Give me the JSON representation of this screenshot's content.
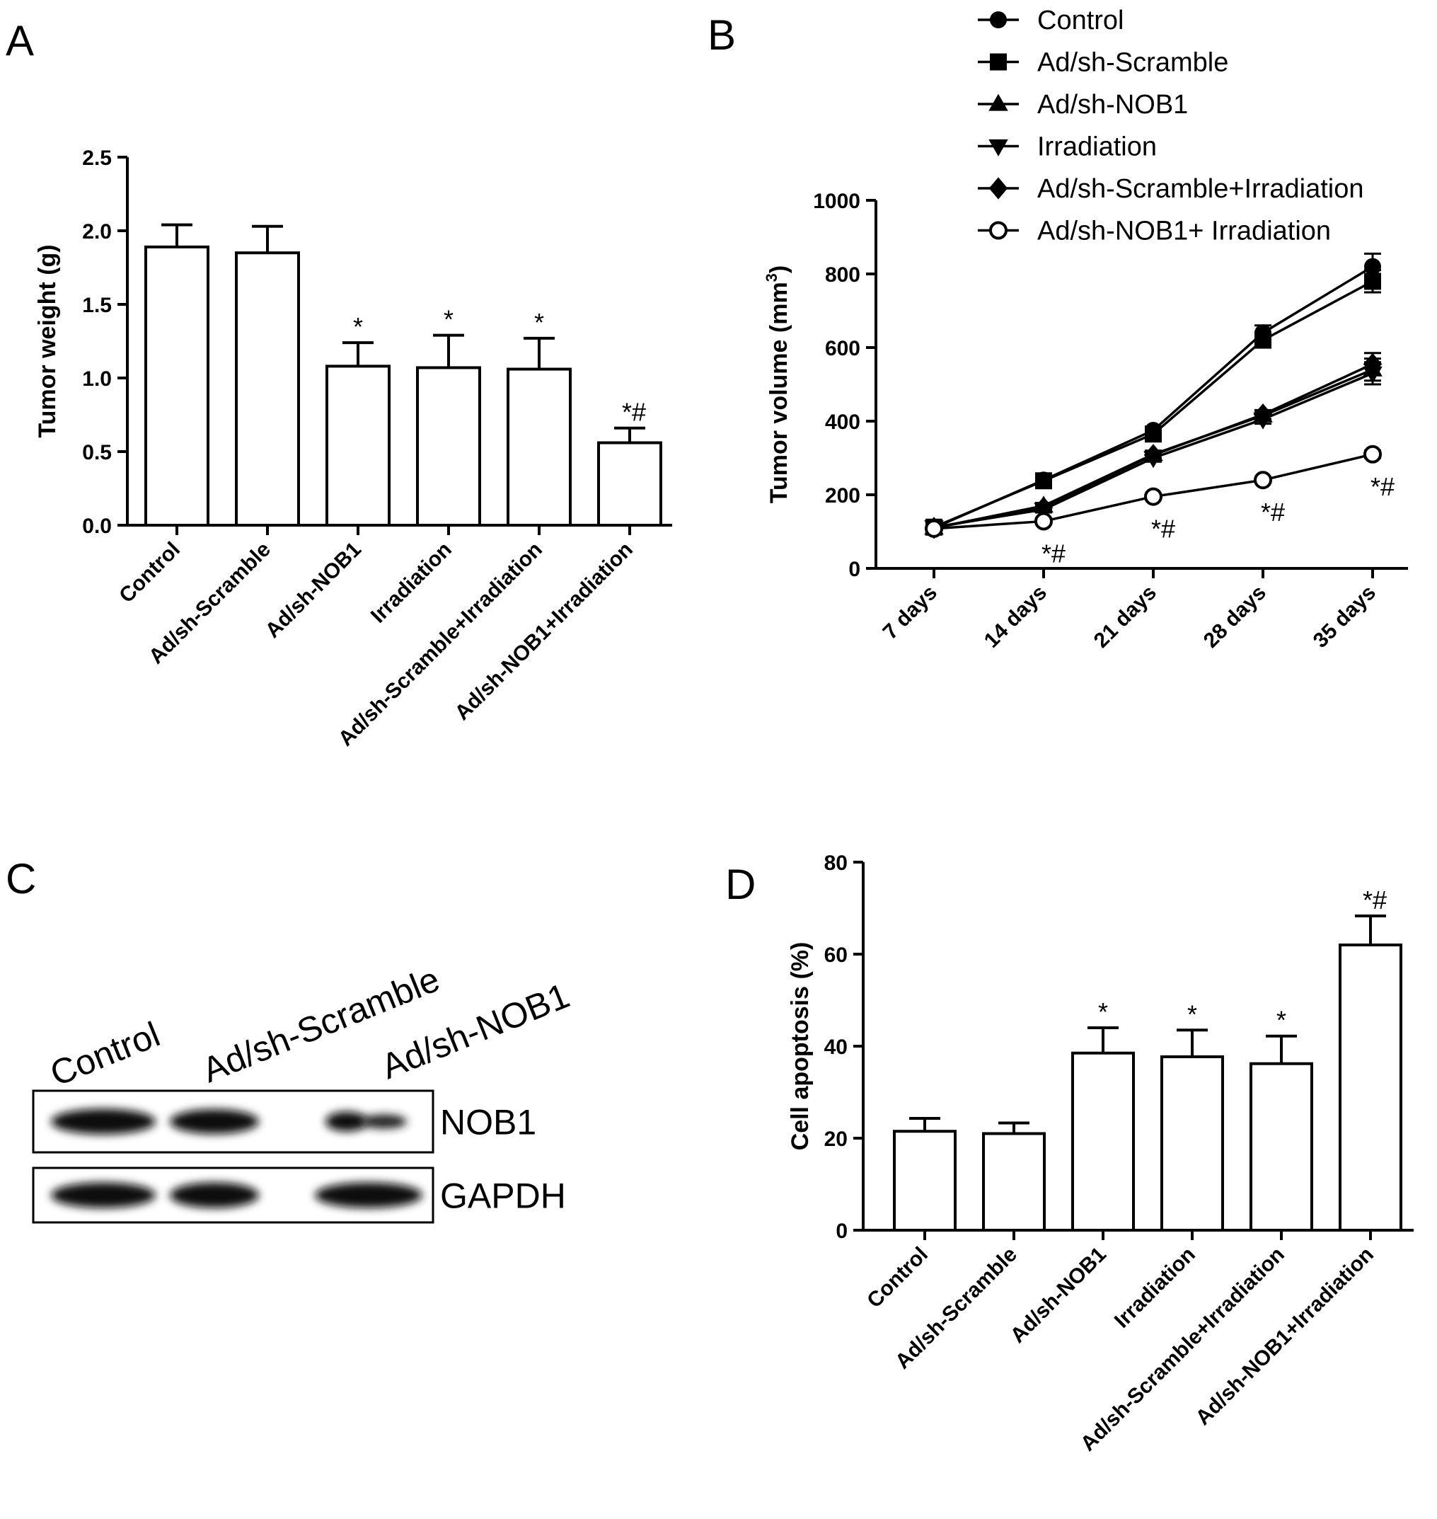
{
  "panels": {
    "a": "A",
    "b": "B",
    "c": "C",
    "d": "D"
  },
  "chart_data": [
    {
      "type": "bar",
      "categories": [
        "Control",
        "Ad/sh-Scramble",
        "Ad/sh-NOB1",
        "Irradiation",
        "Ad/sh-Scramble+Irradiation",
        "Ad/sh-NOB1+Irradiation"
      ],
      "values": [
        1.89,
        1.85,
        1.08,
        1.07,
        1.06,
        0.56
      ],
      "errors": [
        0.15,
        0.18,
        0.16,
        0.22,
        0.21,
        0.1
      ],
      "annotations": [
        "",
        "",
        "*",
        "*",
        "*",
        "*#"
      ],
      "ylabel": "Tumor weight (g)",
      "ylim": [
        0,
        2.5
      ],
      "yticks": [
        "0.0",
        "0.5",
        "1.0",
        "1.5",
        "2.0",
        "2.5"
      ]
    },
    {
      "type": "line",
      "categories": [
        "7 days",
        "14 days",
        "21 days",
        "28 days",
        "35 days"
      ],
      "series": [
        {
          "name": "Control",
          "marker": "circle",
          "values": [
            110,
            240,
            375,
            640,
            820
          ],
          "errors": [
            5,
            10,
            10,
            20,
            35
          ]
        },
        {
          "name": "Ad/sh-Scramble",
          "marker": "square",
          "values": [
            112,
            238,
            365,
            620,
            780
          ],
          "errors": [
            5,
            10,
            10,
            20,
            30
          ]
        },
        {
          "name": "Ad/sh-NOB1",
          "marker": "triangle-up",
          "values": [
            110,
            170,
            310,
            415,
            540
          ],
          "errors": [
            5,
            8,
            10,
            12,
            30
          ]
        },
        {
          "name": "Irradiation",
          "marker": "triangle-down",
          "values": [
            112,
            160,
            300,
            405,
            530
          ],
          "errors": [
            5,
            8,
            10,
            12,
            30
          ]
        },
        {
          "name": "Ad/sh-Scramble+Irradiation",
          "marker": "diamond",
          "values": [
            110,
            165,
            308,
            418,
            555
          ],
          "errors": [
            5,
            8,
            10,
            12,
            30
          ]
        },
        {
          "name": "Ad/sh-NOB1+ Irradiation",
          "marker": "open-circle",
          "values": [
            108,
            128,
            195,
            240,
            310
          ],
          "errors": [
            5,
            6,
            8,
            8,
            10
          ]
        }
      ],
      "annotations": [
        "",
        "*#",
        "*#",
        "*#",
        "*#"
      ],
      "ylabel_main": "Tumor volume (mm",
      "ylabel_sup": "3",
      "ylabel_close": ")",
      "ylim": [
        0,
        1000
      ],
      "yticks": [
        "0",
        "200",
        "400",
        "600",
        "800",
        "1000"
      ],
      "legend": "top"
    },
    {
      "type": "bar",
      "categories": [
        "Control",
        "Ad/sh-Scramble",
        "Ad/sh-NOB1",
        "Irradiation",
        "Ad/sh-Scramble+Irradiation",
        "Ad/sh-NOB1+Irradiation"
      ],
      "values": [
        21.5,
        21,
        38.5,
        37.7,
        36.2,
        62
      ],
      "errors": [
        2.8,
        2.3,
        5.5,
        5.8,
        6,
        6.3
      ],
      "annotations": [
        "",
        "",
        "*",
        "*",
        "*",
        "*#"
      ],
      "ylabel": "Cell apoptosis (%)",
      "ylim": [
        0,
        80
      ],
      "yticks": [
        "0",
        "20",
        "40",
        "60",
        "80"
      ]
    }
  ],
  "blot": {
    "lanes": [
      "Control",
      "Ad/sh-Scramble",
      "Ad/sh-NOB1"
    ],
    "rows": [
      {
        "label": "NOB1",
        "intensity": [
          1.0,
          0.95,
          0.55
        ]
      },
      {
        "label": "GAPDH",
        "intensity": [
          1.0,
          1.0,
          1.0
        ]
      }
    ]
  }
}
